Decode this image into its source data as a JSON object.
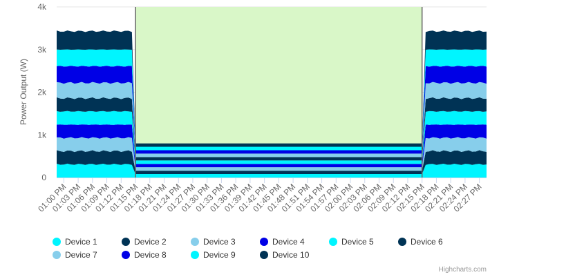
{
  "chart_data": {
    "type": "area",
    "stacking": "normal",
    "title": "",
    "xlabel": "",
    "ylabel": "Power Output (W)",
    "ylim": [
      0,
      4000
    ],
    "y_ticks": [
      "0",
      "1k",
      "2k",
      "3k",
      "4k"
    ],
    "y_tick_values": [
      0,
      1000,
      2000,
      3000,
      4000
    ],
    "grid": true,
    "legend_position": "bottom",
    "x_tick_labels": [
      "01:00 PM",
      "01:03 PM",
      "01:06 PM",
      "01:09 PM",
      "01:12 PM",
      "01:15 PM",
      "01:18 PM",
      "01:21 PM",
      "01:24 PM",
      "01:27 PM",
      "01:30 PM",
      "01:33 PM",
      "01:36 PM",
      "01:39 PM",
      "01:42 PM",
      "01:45 PM",
      "01:48 PM",
      "01:51 PM",
      "01:54 PM",
      "01:57 PM",
      "02:00 PM",
      "02:03 PM",
      "02:06 PM",
      "02:09 PM",
      "02:12 PM",
      "02:15 PM",
      "02:18 PM",
      "02:21 PM",
      "02:24 PM",
      "02:27 PM"
    ],
    "plot_band": {
      "from": "01:15 PM",
      "to": "02:15 PM",
      "color": "#d9f7c8"
    },
    "plot_lines": [
      "01:15 PM",
      "02:15 PM"
    ],
    "series": [
      {
        "name": "Device 1",
        "color": "#00f5ff",
        "active_value": 310,
        "band_value": 80
      },
      {
        "name": "Device 2",
        "color": "#003355",
        "active_value": 310,
        "band_value": 80
      },
      {
        "name": "Device 3",
        "color": "#87ceeb",
        "active_value": 310,
        "band_value": 80
      },
      {
        "name": "Device 4",
        "color": "#0000e6",
        "active_value": 310,
        "band_value": 80
      },
      {
        "name": "Device 5",
        "color": "#00f5ff",
        "active_value": 310,
        "band_value": 80
      },
      {
        "name": "Device 6",
        "color": "#003355",
        "active_value": 310,
        "band_value": 80
      },
      {
        "name": "Device 7",
        "color": "#87ceeb",
        "active_value": 360,
        "band_value": 80
      },
      {
        "name": "Device 8",
        "color": "#0000e6",
        "active_value": 390,
        "band_value": 80
      },
      {
        "name": "Device 9",
        "color": "#00f5ff",
        "active_value": 390,
        "band_value": 80
      },
      {
        "name": "Device 10",
        "color": "#003355",
        "active_value": 430,
        "band_value": 80
      }
    ]
  },
  "credits": "Highcharts.com"
}
